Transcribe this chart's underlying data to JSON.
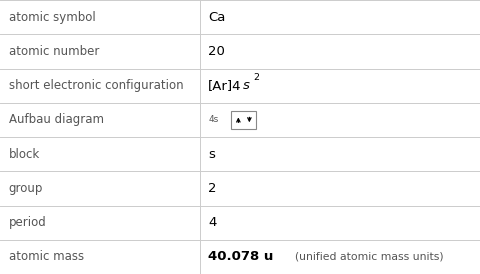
{
  "rows": [
    {
      "label": "atomic symbol",
      "value": "Ca",
      "type": "text"
    },
    {
      "label": "atomic number",
      "value": "20",
      "type": "text"
    },
    {
      "label": "short electronic configuration",
      "type": "elec_config"
    },
    {
      "label": "Aufbau diagram",
      "type": "aufbau"
    },
    {
      "label": "block",
      "value": "s",
      "type": "text"
    },
    {
      "label": "group",
      "value": "2",
      "type": "text"
    },
    {
      "label": "period",
      "value": "4",
      "type": "text"
    },
    {
      "label": "atomic mass",
      "type": "mass"
    }
  ],
  "col_split": 0.415,
  "bg_color": "#ffffff",
  "line_color": "#cccccc",
  "label_font_size": 8.5,
  "value_font_size": 9.5,
  "label_color": "#555555",
  "value_color": "#000000"
}
